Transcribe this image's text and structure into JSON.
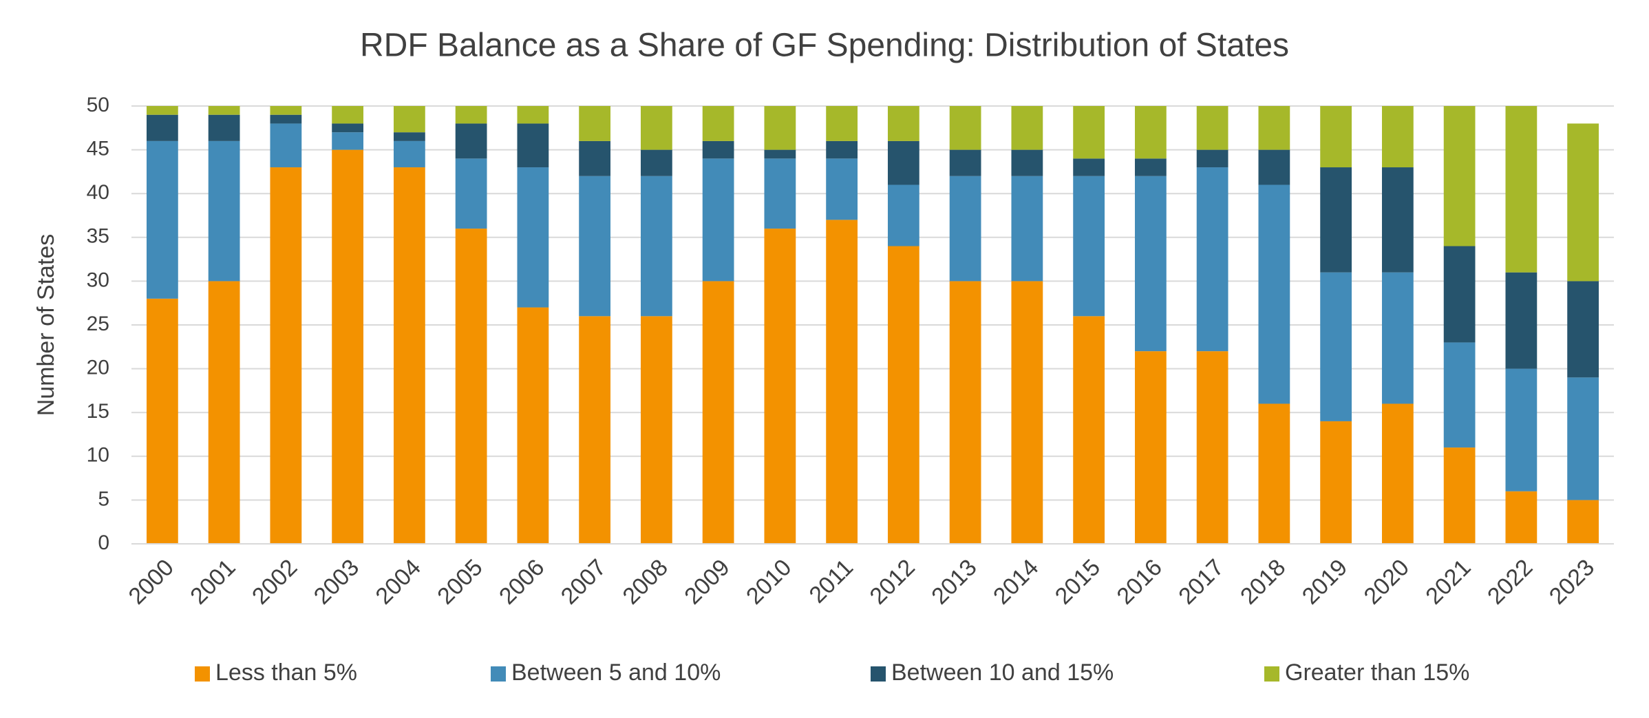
{
  "chart_data": {
    "type": "stacked-bar",
    "title": "RDF Balance as a Share of GF Spending: Distribution of States",
    "y_label": "Number of States",
    "categories": [
      "2000",
      "2001",
      "2002",
      "2003",
      "2004",
      "2005",
      "2006",
      "2007",
      "2008",
      "2009",
      "2010",
      "2011",
      "2012",
      "2013",
      "2014",
      "2015",
      "2016",
      "2017",
      "2018",
      "2019",
      "2020",
      "2021",
      "2022",
      "2023"
    ],
    "series": [
      {
        "name": "Less than 5%",
        "color": "#f39200",
        "values": [
          28,
          30,
          43,
          45,
          43,
          36,
          27,
          26,
          26,
          30,
          36,
          37,
          34,
          30,
          30,
          26,
          22,
          22,
          16,
          14,
          16,
          11,
          6,
          5
        ]
      },
      {
        "name": "Between 5 and 10%",
        "color": "#428bb8",
        "values": [
          18,
          16,
          5,
          2,
          3,
          8,
          16,
          16,
          16,
          14,
          8,
          7,
          7,
          12,
          12,
          16,
          20,
          21,
          25,
          17,
          15,
          12,
          14,
          14
        ]
      },
      {
        "name": "Between 10 and 15%",
        "color": "#26546d",
        "values": [
          3,
          3,
          1,
          1,
          1,
          4,
          5,
          4,
          3,
          2,
          1,
          2,
          5,
          3,
          3,
          2,
          2,
          2,
          4,
          12,
          12,
          11,
          11,
          11
        ]
      },
      {
        "name": "Greater than 15%",
        "color": "#a6b82a",
        "values": [
          1,
          1,
          1,
          2,
          3,
          2,
          2,
          4,
          5,
          4,
          5,
          4,
          4,
          5,
          5,
          6,
          6,
          5,
          5,
          7,
          7,
          16,
          19,
          18
        ]
      }
    ],
    "ylim": [
      0,
      50
    ],
    "yticks": [
      0,
      5,
      10,
      15,
      20,
      25,
      30,
      35,
      40,
      45,
      50
    ],
    "grid": true,
    "legend": "bottom"
  }
}
